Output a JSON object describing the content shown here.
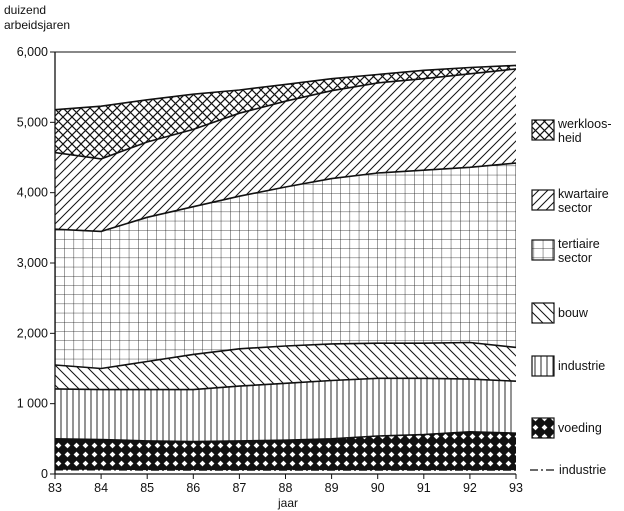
{
  "chart_data": {
    "type": "area",
    "stacked": true,
    "ylabel_line1": "duizend",
    "ylabel_line2": "arbeidsjaren",
    "xlabel": "jaar",
    "x": [
      83,
      84,
      85,
      86,
      87,
      88,
      89,
      90,
      91,
      92,
      93
    ],
    "x_tick_labels": [
      "83",
      "84",
      "85",
      "86",
      "87",
      "88",
      "89",
      "90",
      "91",
      "92",
      "93"
    ],
    "ylim": [
      0,
      6000
    ],
    "y_ticks": [
      0,
      1000,
      2000,
      3000,
      4000,
      5000,
      6000
    ],
    "y_tick_labels": [
      "0",
      "1 000",
      "2,000",
      "3,000",
      "4,000",
      "5,000",
      "6,000"
    ],
    "series_top": [
      {
        "name": "industrie (dash-dot)",
        "pattern": "none",
        "values": [
          60,
          60,
          55,
          55,
          55,
          55,
          55,
          55,
          55,
          55,
          55
        ]
      },
      {
        "name": "voeding",
        "pattern": "diamond",
        "values": [
          500,
          490,
          470,
          460,
          470,
          480,
          500,
          540,
          560,
          600,
          580
        ]
      },
      {
        "name": "industrie",
        "pattern": "vertical",
        "values": [
          1210,
          1200,
          1200,
          1200,
          1250,
          1290,
          1330,
          1360,
          1360,
          1350,
          1320
        ]
      },
      {
        "name": "bouw",
        "pattern": "back-diagonal",
        "values": [
          1550,
          1500,
          1600,
          1700,
          1780,
          1820,
          1850,
          1860,
          1860,
          1870,
          1800
        ]
      },
      {
        "name": "tertiaire sector",
        "pattern": "grid",
        "values": [
          3480,
          3450,
          3650,
          3800,
          3950,
          4080,
          4200,
          4280,
          4320,
          4360,
          4420
        ]
      },
      {
        "name": "kwartaire sector",
        "pattern": "diagonal",
        "values": [
          4570,
          4480,
          4720,
          4900,
          5130,
          5300,
          5450,
          5560,
          5620,
          5690,
          5760
        ]
      },
      {
        "name": "werkloosheid",
        "pattern": "crosshatch",
        "values": [
          5180,
          5230,
          5320,
          5400,
          5460,
          5540,
          5620,
          5680,
          5740,
          5780,
          5810
        ]
      }
    ],
    "legend": [
      {
        "line1": "werkloos-",
        "line2": "heid",
        "pattern": "crosshatch"
      },
      {
        "line1": "kwartaire",
        "line2": "sector",
        "pattern": "diagonal"
      },
      {
        "line1": "tertiaire",
        "line2": "sector",
        "pattern": "grid"
      },
      {
        "line1": "bouw",
        "line2": "",
        "pattern": "back-diagonal"
      },
      {
        "line1": "industrie",
        "line2": "",
        "pattern": "vertical"
      },
      {
        "line1": "voeding",
        "line2": "",
        "pattern": "diamond"
      },
      {
        "line1": "industrie",
        "line2": "",
        "pattern": "dashdot"
      }
    ],
    "grid": false,
    "legend_position": "right"
  }
}
